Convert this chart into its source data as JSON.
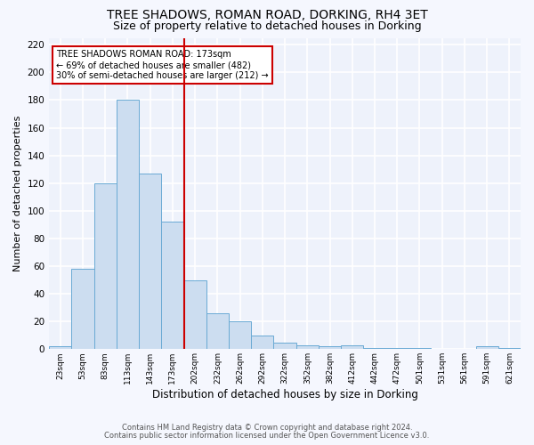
{
  "title1": "TREE SHADOWS, ROMAN ROAD, DORKING, RH4 3ET",
  "title2": "Size of property relative to detached houses in Dorking",
  "xlabel": "Distribution of detached houses by size in Dorking",
  "ylabel": "Number of detached properties",
  "bin_labels": [
    "23sqm",
    "53sqm",
    "83sqm",
    "113sqm",
    "143sqm",
    "173sqm",
    "202sqm",
    "232sqm",
    "262sqm",
    "292sqm",
    "322sqm",
    "352sqm",
    "382sqm",
    "412sqm",
    "442sqm",
    "472sqm",
    "501sqm",
    "531sqm",
    "561sqm",
    "591sqm",
    "621sqm"
  ],
  "bar_values": [
    2,
    58,
    120,
    180,
    127,
    92,
    50,
    26,
    20,
    10,
    5,
    3,
    2,
    3,
    1,
    1,
    1,
    0,
    0,
    2,
    1
  ],
  "bar_color": "#ccddf0",
  "bar_edge_color": "#6aaad4",
  "vline_x": 5.5,
  "vline_color": "#cc0000",
  "annotation_text": "TREE SHADOWS ROMAN ROAD: 173sqm\n← 69% of detached houses are smaller (482)\n30% of semi-detached houses are larger (212) →",
  "annotation_box_color": "#ffffff",
  "annotation_box_edge": "#cc0000",
  "ylim": [
    0,
    225
  ],
  "yticks": [
    0,
    20,
    40,
    60,
    80,
    100,
    120,
    140,
    160,
    180,
    200,
    220
  ],
  "footnote1": "Contains HM Land Registry data © Crown copyright and database right 2024.",
  "footnote2": "Contains public sector information licensed under the Open Government Licence v3.0.",
  "bg_color": "#eef2fb",
  "grid_color": "#ffffff",
  "title1_fontsize": 10,
  "title2_fontsize": 9,
  "xlabel_fontsize": 8.5,
  "ylabel_fontsize": 8,
  "tick_fontsize": 7.5,
  "xtick_fontsize": 6.5,
  "footnote_fontsize": 6,
  "annotation_fontsize": 7
}
